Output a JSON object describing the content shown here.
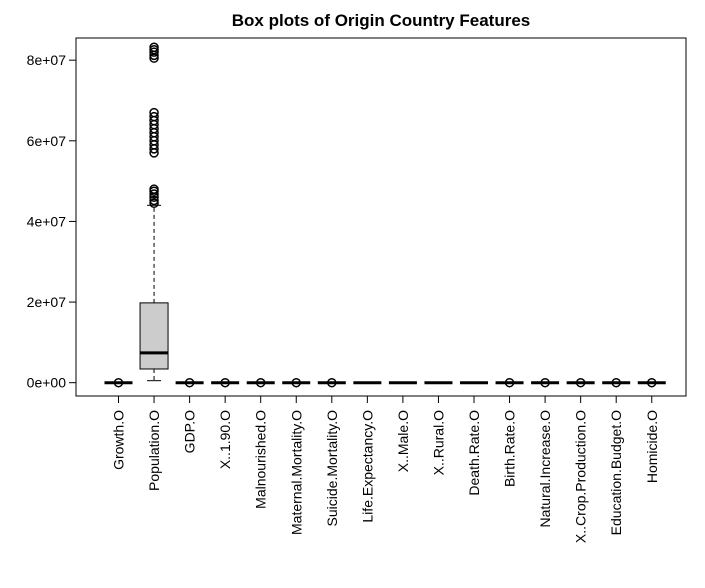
{
  "chart_data": {
    "type": "box",
    "title": "Box plots of Origin Country Features",
    "xlabel": "",
    "ylabel": "",
    "ylim": [
      -3300000,
      85500000
    ],
    "y_ticks": [
      {
        "value": 0,
        "label": "0e+00"
      },
      {
        "value": 20000000,
        "label": "2e+07"
      },
      {
        "value": 40000000,
        "label": "4e+07"
      },
      {
        "value": 60000000,
        "label": "6e+07"
      },
      {
        "value": 80000000,
        "label": "8e+07"
      }
    ],
    "categories": [
      "Growth.O",
      "Population.O",
      "GDP.O",
      "X..1.90.O",
      "Malnourished.O",
      "Maternal.Mortality.O",
      "Suicide.Mortality.O",
      "Life.Expectancy.O",
      "X..Male.O",
      "X..Rural.O",
      "Death.Rate.O",
      "Birth.Rate.O",
      "Natural.Increase.O",
      "X..Crop.Production.O",
      "Education.Budget.O",
      "Homicide.O"
    ],
    "boxes": [
      {
        "min": 0,
        "q1": 0,
        "median": 0,
        "q3": 0,
        "max": 0,
        "outliers": [
          0
        ]
      },
      {
        "min": 500000,
        "q1": 3400000,
        "median": 7400000,
        "q3": 19800000,
        "max": 44000000,
        "outliers": [
          44500000,
          45200000,
          46000000,
          46800000,
          47500000,
          48000000,
          57000000,
          58000000,
          59000000,
          60000000,
          61000000,
          62000000,
          63000000,
          64000000,
          65000000,
          66000000,
          67000000,
          80500000,
          81200000,
          82000000,
          82600000,
          83200000
        ]
      },
      {
        "min": 0,
        "q1": 0,
        "median": 0,
        "q3": 0,
        "max": 0,
        "outliers": [
          0
        ]
      },
      {
        "min": 0,
        "q1": 0,
        "median": 0,
        "q3": 0,
        "max": 0,
        "outliers": [
          0
        ]
      },
      {
        "min": 0,
        "q1": 0,
        "median": 0,
        "q3": 0,
        "max": 0,
        "outliers": [
          0
        ]
      },
      {
        "min": 0,
        "q1": 0,
        "median": 0,
        "q3": 0,
        "max": 0,
        "outliers": [
          0
        ]
      },
      {
        "min": 0,
        "q1": 0,
        "median": 0,
        "q3": 0,
        "max": 0,
        "outliers": [
          0
        ]
      },
      {
        "min": 0,
        "q1": 0,
        "median": 0,
        "q3": 0,
        "max": 0,
        "outliers": []
      },
      {
        "min": 0,
        "q1": 0,
        "median": 0,
        "q3": 0,
        "max": 0,
        "outliers": []
      },
      {
        "min": 0,
        "q1": 0,
        "median": 0,
        "q3": 0,
        "max": 0,
        "outliers": []
      },
      {
        "min": 0,
        "q1": 0,
        "median": 0,
        "q3": 0,
        "max": 0,
        "outliers": []
      },
      {
        "min": 0,
        "q1": 0,
        "median": 0,
        "q3": 0,
        "max": 0,
        "outliers": [
          0
        ]
      },
      {
        "min": 0,
        "q1": 0,
        "median": 0,
        "q3": 0,
        "max": 0,
        "outliers": [
          0
        ]
      },
      {
        "min": 0,
        "q1": 0,
        "median": 0,
        "q3": 0,
        "max": 0,
        "outliers": [
          0
        ]
      },
      {
        "min": 0,
        "q1": 0,
        "median": 0,
        "q3": 0,
        "max": 0,
        "outliers": [
          0
        ]
      },
      {
        "min": 0,
        "q1": 0,
        "median": 0,
        "q3": 0,
        "max": 0,
        "outliers": [
          0
        ]
      }
    ],
    "box_fill": "#cccccc",
    "grid": false,
    "legend": "none"
  }
}
